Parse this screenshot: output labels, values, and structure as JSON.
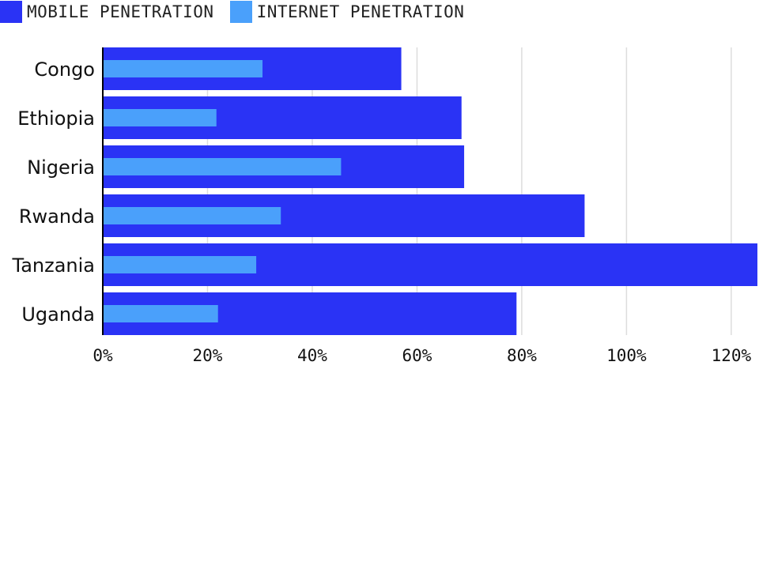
{
  "legend": [
    {
      "label": "MOBILE PENETRATION",
      "color": "#2a33f5"
    },
    {
      "label": "INTERNET PENETRATION",
      "color": "#4aa0fb"
    }
  ],
  "chart_data": {
    "type": "bar",
    "orientation": "horizontal",
    "categories": [
      "Congo",
      "Ethiopia",
      "Nigeria",
      "Rwanda",
      "Tanzania",
      "Uganda"
    ],
    "series": [
      {
        "name": "MOBILE PENETRATION",
        "color": "#2a33f5",
        "values": [
          57,
          68.5,
          69,
          92,
          125,
          79
        ]
      },
      {
        "name": "INTERNET PENETRATION",
        "color": "#4aa0fb",
        "values": [
          30.5,
          21.7,
          45.5,
          34,
          29.3,
          22
        ]
      }
    ],
    "xlim": [
      0,
      125
    ],
    "x_ticks": [
      "0%",
      "20%",
      "40%",
      "60%",
      "80%",
      "100%",
      "120%"
    ],
    "x_tick_values": [
      0,
      20,
      40,
      60,
      80,
      100,
      120
    ],
    "grid": true,
    "legend_position": "top-left"
  }
}
